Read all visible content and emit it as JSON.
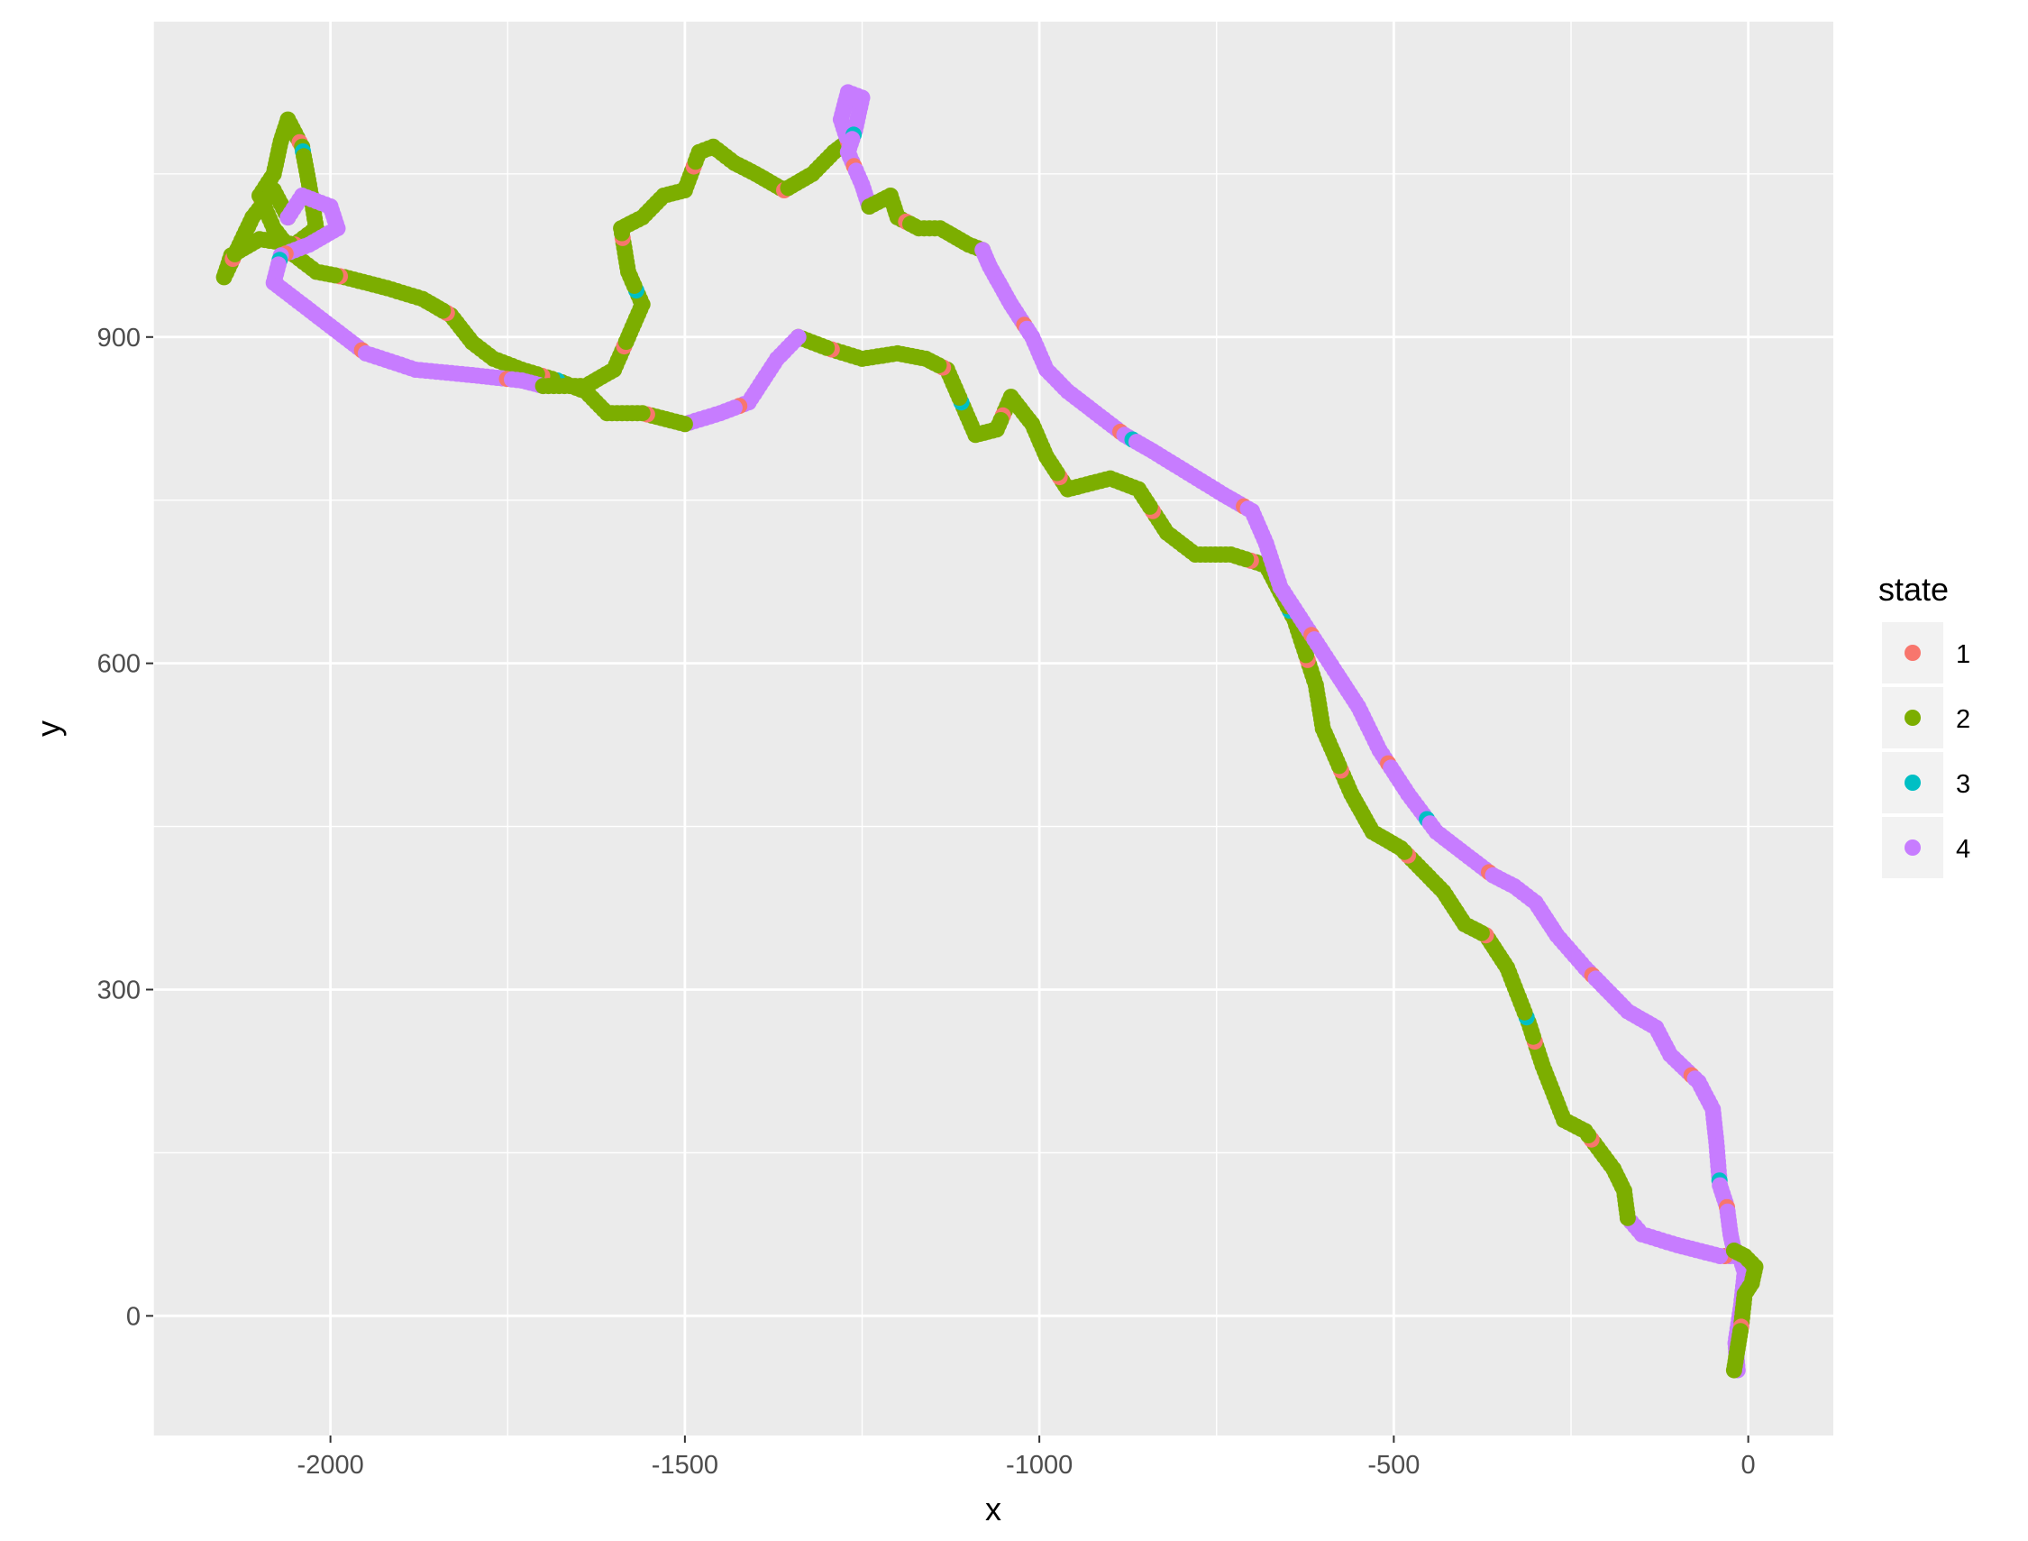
{
  "chart_data": {
    "type": "scatter",
    "xlabel": "x",
    "ylabel": "y",
    "xlim": [
      -2250,
      120
    ],
    "ylim": [
      -110,
      1190
    ],
    "x_ticks": [
      -2000,
      -1500,
      -1000,
      -500,
      0
    ],
    "x_tick_labels": [
      "-2000",
      "-1500",
      "-1000",
      "-500",
      "0"
    ],
    "y_ticks": [
      0,
      300,
      600,
      900
    ],
    "y_tick_labels": [
      "0",
      "300",
      "600",
      "900"
    ],
    "x_minor": [
      -2250,
      -1750,
      -1250,
      -750,
      -250
    ],
    "y_minor": [
      -150,
      150,
      450,
      750,
      1050
    ],
    "grid": true,
    "legend": {
      "title": "state",
      "position": "right",
      "entries": [
        {
          "label": "1",
          "color": "#F8766D"
        },
        {
          "label": "2",
          "color": "#7CAE00"
        },
        {
          "label": "3",
          "color": "#00BFC4"
        },
        {
          "label": "4",
          "color": "#C77CFF"
        }
      ]
    },
    "series": [
      {
        "name": "4",
        "color": "#C77CFF",
        "path": [
          [
            -15,
            -50
          ],
          [
            -18,
            -25
          ],
          [
            -10,
            10
          ],
          [
            -5,
            40
          ],
          [
            -12,
            55
          ],
          [
            -40,
            55
          ],
          [
            -100,
            65
          ],
          [
            -150,
            75
          ],
          [
            -170,
            90
          ]
        ]
      },
      {
        "name": "2",
        "color": "#7CAE00",
        "path": [
          [
            -170,
            90
          ],
          [
            -175,
            115
          ],
          [
            -190,
            135
          ],
          [
            -230,
            170
          ],
          [
            -260,
            180
          ],
          [
            -290,
            230
          ],
          [
            -310,
            270
          ],
          [
            -340,
            320
          ],
          [
            -370,
            350
          ],
          [
            -400,
            360
          ],
          [
            -430,
            390
          ],
          [
            -460,
            410
          ],
          [
            -490,
            430
          ],
          [
            -530,
            445
          ],
          [
            -560,
            480
          ],
          [
            -600,
            540
          ],
          [
            -610,
            580
          ],
          [
            -640,
            640
          ],
          [
            -680,
            690
          ],
          [
            -730,
            700
          ],
          [
            -780,
            700
          ],
          [
            -820,
            720
          ],
          [
            -860,
            760
          ],
          [
            -900,
            770
          ],
          [
            -960,
            760
          ],
          [
            -990,
            790
          ],
          [
            -1010,
            820
          ],
          [
            -1040,
            845
          ],
          [
            -1060,
            815
          ],
          [
            -1090,
            810
          ],
          [
            -1110,
            840
          ],
          [
            -1130,
            870
          ],
          [
            -1160,
            880
          ],
          [
            -1200,
            885
          ],
          [
            -1250,
            880
          ],
          [
            -1300,
            890
          ],
          [
            -1340,
            900
          ]
        ]
      },
      {
        "name": "4",
        "color": "#C77CFF",
        "path": [
          [
            -1340,
            900
          ],
          [
            -1370,
            880
          ],
          [
            -1410,
            840
          ],
          [
            -1450,
            830
          ],
          [
            -1500,
            820
          ]
        ]
      },
      {
        "name": "2",
        "color": "#7CAE00",
        "path": [
          [
            -1500,
            820
          ],
          [
            -1560,
            830
          ],
          [
            -1610,
            830
          ],
          [
            -1640,
            850
          ],
          [
            -1680,
            860
          ],
          [
            -1730,
            870
          ],
          [
            -1770,
            880
          ],
          [
            -1800,
            895
          ],
          [
            -1830,
            920
          ],
          [
            -1870,
            935
          ],
          [
            -1920,
            945
          ],
          [
            -1980,
            955
          ],
          [
            -2020,
            960
          ],
          [
            -2050,
            975
          ],
          [
            -2080,
            1000
          ],
          [
            -2100,
            1030
          ],
          [
            -2080,
            1050
          ],
          [
            -2070,
            1080
          ],
          [
            -2060,
            1100
          ],
          [
            -2040,
            1075
          ],
          [
            -2030,
            1040
          ],
          [
            -2020,
            1000
          ],
          [
            -2050,
            985
          ],
          [
            -2100,
            990
          ],
          [
            -2140,
            975
          ],
          [
            -2150,
            955
          ],
          [
            -2110,
            1010
          ],
          [
            -2080,
            1035
          ],
          [
            -2060,
            1010
          ]
        ]
      },
      {
        "name": "4",
        "color": "#C77CFF",
        "path": [
          [
            -2060,
            1010
          ],
          [
            -2040,
            1030
          ],
          [
            -2000,
            1020
          ],
          [
            -1990,
            1000
          ],
          [
            -2030,
            985
          ],
          [
            -2070,
            975
          ],
          [
            -2080,
            950
          ],
          [
            -2040,
            930
          ],
          [
            -2000,
            910
          ],
          [
            -1950,
            885
          ],
          [
            -1880,
            870
          ],
          [
            -1800,
            865
          ],
          [
            -1730,
            860
          ],
          [
            -1700,
            855
          ]
        ]
      },
      {
        "name": "2",
        "color": "#7CAE00",
        "path": [
          [
            -1700,
            855
          ],
          [
            -1640,
            855
          ],
          [
            -1600,
            870
          ],
          [
            -1580,
            900
          ],
          [
            -1560,
            930
          ],
          [
            -1580,
            960
          ],
          [
            -1590,
            1000
          ],
          [
            -1560,
            1010
          ],
          [
            -1530,
            1030
          ],
          [
            -1500,
            1035
          ],
          [
            -1480,
            1070
          ],
          [
            -1460,
            1075
          ],
          [
            -1430,
            1060
          ],
          [
            -1400,
            1050
          ],
          [
            -1360,
            1035
          ],
          [
            -1320,
            1050
          ],
          [
            -1290,
            1070
          ],
          [
            -1270,
            1080
          ]
        ]
      },
      {
        "name": "4",
        "color": "#C77CFF",
        "path": [
          [
            -1270,
            1080
          ],
          [
            -1280,
            1100
          ],
          [
            -1270,
            1125
          ],
          [
            -1250,
            1120
          ],
          [
            -1260,
            1090
          ],
          [
            -1270,
            1070
          ],
          [
            -1250,
            1040
          ],
          [
            -1240,
            1020
          ]
        ]
      },
      {
        "name": "2",
        "color": "#7CAE00",
        "path": [
          [
            -1240,
            1020
          ],
          [
            -1210,
            1030
          ],
          [
            -1200,
            1010
          ],
          [
            -1170,
            1000
          ],
          [
            -1140,
            1000
          ],
          [
            -1100,
            985
          ],
          [
            -1080,
            980
          ]
        ]
      },
      {
        "name": "4",
        "color": "#C77CFF",
        "path": [
          [
            -1080,
            980
          ],
          [
            -1070,
            965
          ],
          [
            -1040,
            930
          ],
          [
            -1010,
            900
          ],
          [
            -990,
            870
          ],
          [
            -960,
            850
          ],
          [
            -920,
            830
          ],
          [
            -880,
            810
          ],
          [
            -840,
            795
          ],
          [
            -790,
            775
          ],
          [
            -740,
            755
          ],
          [
            -700,
            740
          ],
          [
            -680,
            710
          ],
          [
            -660,
            670
          ],
          [
            -620,
            630
          ],
          [
            -580,
            590
          ],
          [
            -550,
            560
          ],
          [
            -520,
            520
          ],
          [
            -480,
            480
          ],
          [
            -440,
            445
          ],
          [
            -400,
            425
          ],
          [
            -360,
            405
          ],
          [
            -330,
            395
          ],
          [
            -300,
            380
          ],
          [
            -270,
            350
          ],
          [
            -230,
            320
          ],
          [
            -200,
            300
          ],
          [
            -170,
            280
          ],
          [
            -130,
            265
          ],
          [
            -110,
            240
          ],
          [
            -70,
            215
          ],
          [
            -50,
            190
          ],
          [
            -45,
            160
          ],
          [
            -40,
            120
          ],
          [
            -30,
            100
          ],
          [
            -25,
            75
          ],
          [
            -20,
            60
          ]
        ]
      },
      {
        "name": "2",
        "color": "#7CAE00",
        "path": [
          [
            -20,
            60
          ],
          [
            -5,
            55
          ],
          [
            10,
            45
          ],
          [
            5,
            30
          ],
          [
            -5,
            20
          ],
          [
            -10,
            -10
          ],
          [
            -15,
            -30
          ],
          [
            -20,
            -50
          ]
        ]
      }
    ]
  }
}
